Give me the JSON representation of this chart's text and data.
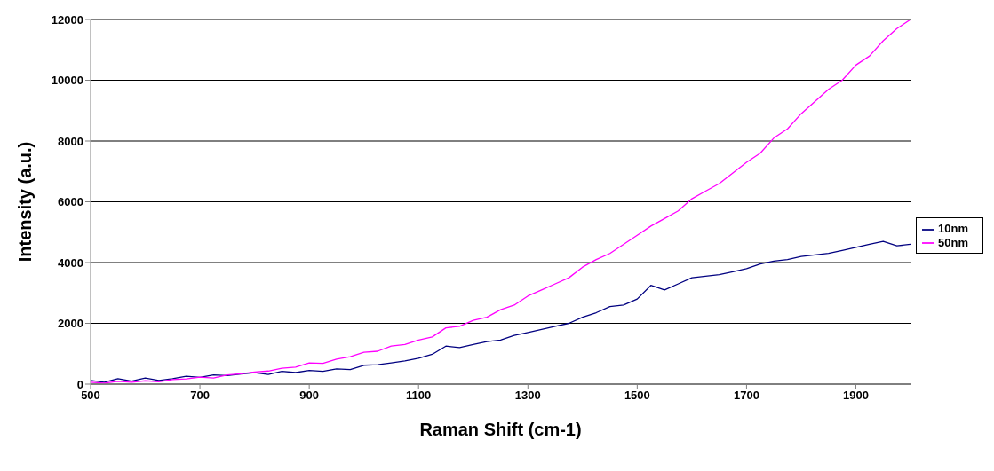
{
  "chart_data": {
    "type": "line",
    "xlabel": "Raman Shift (cm-1)",
    "ylabel": "Intensity (a.u.)",
    "x": [
      500,
      525,
      550,
      575,
      600,
      625,
      650,
      675,
      700,
      725,
      750,
      775,
      800,
      825,
      850,
      875,
      900,
      925,
      950,
      975,
      1000,
      1025,
      1050,
      1075,
      1100,
      1125,
      1150,
      1175,
      1200,
      1225,
      1250,
      1275,
      1300,
      1325,
      1350,
      1375,
      1400,
      1425,
      1450,
      1475,
      1500,
      1525,
      1550,
      1575,
      1600,
      1625,
      1650,
      1675,
      1700,
      1725,
      1750,
      1775,
      1800,
      1825,
      1850,
      1875,
      1900,
      1925,
      1950,
      1975,
      2000
    ],
    "series": [
      {
        "name": "10nm",
        "color": "#000080",
        "values": [
          120,
          60,
          180,
          100,
          200,
          120,
          180,
          260,
          220,
          300,
          280,
          330,
          380,
          320,
          420,
          380,
          450,
          420,
          500,
          480,
          620,
          640,
          700,
          760,
          850,
          980,
          1250,
          1200,
          1300,
          1400,
          1450,
          1600,
          1700,
          1800,
          1900,
          2000,
          2200,
          2350,
          2550,
          2600,
          2800,
          3250,
          3100,
          3300,
          3500,
          3550,
          3600,
          3700,
          3800,
          3950,
          4050,
          4100,
          4200,
          4250,
          4300,
          4400,
          4500,
          4600,
          4700,
          4550,
          4600
        ]
      },
      {
        "name": "50nm",
        "color": "#ff00ff",
        "values": [
          60,
          30,
          90,
          60,
          110,
          80,
          150,
          170,
          230,
          200,
          300,
          340,
          400,
          430,
          520,
          560,
          700,
          680,
          820,
          900,
          1050,
          1080,
          1250,
          1300,
          1450,
          1550,
          1850,
          1900,
          2100,
          2200,
          2450,
          2600,
          2900,
          3100,
          3300,
          3500,
          3850,
          4100,
          4300,
          4600,
          4900,
          5200,
          5450,
          5700,
          6100,
          6350,
          6600,
          6950,
          7300,
          7600,
          8100,
          8400,
          8900,
          9300,
          9700,
          10000,
          10500,
          10800,
          11300,
          11700,
          12000
        ]
      }
    ],
    "xlim": [
      500,
      2000
    ],
    "xticks": [
      500,
      700,
      900,
      1100,
      1300,
      1500,
      1700,
      1900
    ],
    "ylim": [
      0,
      12000
    ],
    "yticks": [
      0,
      2000,
      4000,
      6000,
      8000,
      10000,
      12000
    ],
    "grid": "y",
    "legend": "right",
    "line_style": "solid",
    "marker": "none"
  }
}
